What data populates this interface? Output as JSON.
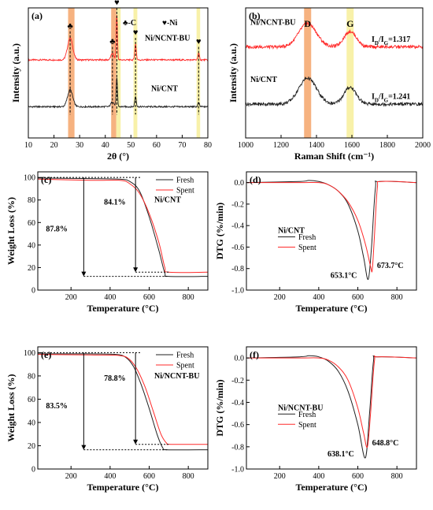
{
  "colors": {
    "fresh": "#222222",
    "spent": "#ff2a2a",
    "orange_band": "#f5a46a",
    "yellow_band": "#f7ee9a"
  },
  "chart_data": [
    {
      "id": "a",
      "panel_label": "(a)",
      "type": "line",
      "xlabel": "2θ (°)",
      "ylabel": "Intensity (a.u.)",
      "xlim": [
        10,
        80
      ],
      "xticks": [
        "10",
        "20",
        "30",
        "40",
        "50",
        "60",
        "70",
        "80"
      ],
      "legend_symbols": [
        "♣-C",
        "♥-Ni"
      ],
      "bands": [
        {
          "x0": 25.5,
          "x1": 28,
          "color": "orange"
        },
        {
          "x0": 42.3,
          "x1": 44.3,
          "color": "orange"
        },
        {
          "x0": 44.3,
          "x1": 46,
          "color": "yellow"
        },
        {
          "x0": 51,
          "x1": 52.5,
          "color": "yellow"
        },
        {
          "x0": 75.6,
          "x1": 77,
          "color": "yellow"
        }
      ],
      "markers": [
        {
          "x": 26.3,
          "symbol": "♣"
        },
        {
          "x": 42.8,
          "symbol": "♣"
        },
        {
          "x": 44.5,
          "symbol": "♥"
        },
        {
          "x": 51.8,
          "symbol": "♥"
        },
        {
          "x": 76.4,
          "symbol": "♥"
        }
      ],
      "series": [
        {
          "name": "Ni/NCNT-BU",
          "color": "spent",
          "baseline": 0.6,
          "peaks": [
            [
              26.3,
              0.17,
              1.0
            ],
            [
              42.8,
              0.05,
              0.6
            ],
            [
              44.5,
              0.35,
              0.25
            ],
            [
              51.8,
              0.12,
              0.3
            ],
            [
              76.4,
              0.05,
              0.3
            ]
          ]
        },
        {
          "name": "Ni/CNT",
          "color": "fresh",
          "baseline": 0.24,
          "peaks": [
            [
              26.3,
              0.13,
              1.0
            ],
            [
              42.8,
              0.04,
              0.6
            ],
            [
              44.5,
              0.22,
              0.25
            ],
            [
              51.8,
              0.08,
              0.3
            ],
            [
              76.4,
              0.03,
              0.3
            ]
          ]
        }
      ]
    },
    {
      "id": "b",
      "panel_label": "(b)",
      "type": "line",
      "xlabel": "Raman Shift (cm⁻¹)",
      "ylabel": "Intensity (a.u.)",
      "xlim": [
        1000,
        2000
      ],
      "xticks": [
        "1000",
        "1200",
        "1400",
        "1600",
        "1800",
        "2000"
      ],
      "bands": [
        {
          "x0": 1330,
          "x1": 1370,
          "color": "orange",
          "label": "D"
        },
        {
          "x0": 1570,
          "x1": 1610,
          "color": "yellow",
          "label": "G"
        }
      ],
      "series": [
        {
          "name": "Ni/NCNT-BU",
          "color": "spent",
          "baseline": 0.7,
          "ratio": "1.317",
          "peaks": [
            [
              1350,
              0.18,
              50
            ],
            [
              1590,
              0.12,
              35
            ]
          ]
        },
        {
          "name": "Ni/CNT",
          "color": "fresh",
          "baseline": 0.26,
          "ratio": "1.241",
          "peaks": [
            [
              1350,
              0.2,
              50
            ],
            [
              1590,
              0.13,
              35
            ]
          ]
        }
      ]
    },
    {
      "id": "c",
      "panel_label": "(c)",
      "type": "line",
      "xlabel": "Temperature (°C)",
      "ylabel": "Weight Loss (%)",
      "xlim": [
        30,
        900
      ],
      "ylim": [
        0,
        105
      ],
      "xticks": [
        200,
        400,
        600,
        800
      ],
      "yticks": [
        0,
        20,
        40,
        60,
        80,
        100
      ],
      "sample": "Ni/CNT",
      "arrows": [
        {
          "x": 265,
          "from": 100,
          "to": 12.2,
          "label": "87.8%"
        },
        {
          "x": 530,
          "from": 100,
          "to": 15.9,
          "label": "84.1%"
        }
      ],
      "series": [
        {
          "name": "Fresh",
          "color": "fresh",
          "points": [
            [
              30,
              99.5
            ],
            [
              300,
              99
            ],
            [
              450,
              98.5
            ],
            [
              500,
              96.5
            ],
            [
              550,
              88
            ],
            [
              600,
              65
            ],
            [
              650,
              35
            ],
            [
              680,
              15
            ],
            [
              700,
              12.2
            ],
            [
              900,
              12.2
            ]
          ]
        },
        {
          "name": "Spent",
          "color": "spent",
          "points": [
            [
              30,
              98.5
            ],
            [
              300,
              97.5
            ],
            [
              450,
              97.5
            ],
            [
              500,
              94.5
            ],
            [
              550,
              86
            ],
            [
              600,
              68
            ],
            [
              650,
              42
            ],
            [
              680,
              20
            ],
            [
              700,
              15.9
            ],
            [
              900,
              15.9
            ]
          ]
        }
      ]
    },
    {
      "id": "d",
      "panel_label": "(d)",
      "type": "line",
      "xlabel": "Temperature (°C)",
      "ylabel": "DTG (%/min)",
      "xlim": [
        30,
        900
      ],
      "ylim": [
        -1.0,
        0.1
      ],
      "xticks": [
        200,
        400,
        600,
        800
      ],
      "yticks": [
        0.0,
        -0.2,
        -0.4,
        -0.6,
        -0.8,
        -1.0
      ],
      "sample": "Ni/CNT",
      "peak_labels": [
        {
          "x": 653.1,
          "y": -0.9,
          "label": "653.1°C"
        },
        {
          "x": 673.7,
          "y": -0.81,
          "label": "673.7°C"
        }
      ],
      "series": [
        {
          "name": "Fresh",
          "color": "fresh",
          "points": [
            [
              30,
              0
            ],
            [
              300,
              0.01
            ],
            [
              350,
              0.02
            ],
            [
              400,
              0.01
            ],
            [
              450,
              -0.02
            ],
            [
              500,
              -0.08
            ],
            [
              550,
              -0.2
            ],
            [
              600,
              -0.45
            ],
            [
              630,
              -0.7
            ],
            [
              653,
              -0.9
            ],
            [
              670,
              -0.6
            ],
            [
              690,
              -0.05
            ],
            [
              710,
              0.01
            ],
            [
              900,
              0
            ]
          ]
        },
        {
          "name": "Spent",
          "color": "spent",
          "points": [
            [
              30,
              0
            ],
            [
              300,
              0
            ],
            [
              400,
              0
            ],
            [
              450,
              -0.02
            ],
            [
              500,
              -0.08
            ],
            [
              550,
              -0.18
            ],
            [
              600,
              -0.35
            ],
            [
              640,
              -0.58
            ],
            [
              665,
              -0.78
            ],
            [
              674,
              -0.81
            ],
            [
              685,
              -0.5
            ],
            [
              700,
              -0.05
            ],
            [
              720,
              0.01
            ],
            [
              900,
              0
            ]
          ]
        }
      ]
    },
    {
      "id": "e",
      "panel_label": "(e)",
      "type": "line",
      "xlabel": "Temperature (°C)",
      "ylabel": "Weight Loss (%)",
      "xlim": [
        30,
        900
      ],
      "ylim": [
        0,
        105
      ],
      "xticks": [
        200,
        400,
        600,
        800
      ],
      "yticks": [
        0,
        20,
        40,
        60,
        80,
        100
      ],
      "sample": "Ni/NCNT-BU",
      "arrows": [
        {
          "x": 265,
          "from": 100,
          "to": 16.5,
          "label": "83.5%"
        },
        {
          "x": 530,
          "from": 100,
          "to": 21.2,
          "label": "78.8%"
        }
      ],
      "series": [
        {
          "name": "Fresh",
          "color": "fresh",
          "points": [
            [
              30,
              99
            ],
            [
              300,
              99
            ],
            [
              430,
              98.5
            ],
            [
              480,
              96
            ],
            [
              520,
              88
            ],
            [
              560,
              72
            ],
            [
              600,
              52
            ],
            [
              640,
              30
            ],
            [
              670,
              18
            ],
            [
              690,
              16.5
            ],
            [
              900,
              16.5
            ]
          ]
        },
        {
          "name": "Spent",
          "color": "spent",
          "points": [
            [
              30,
              98.5
            ],
            [
              300,
              98
            ],
            [
              450,
              97.5
            ],
            [
              500,
              94
            ],
            [
              540,
              85
            ],
            [
              580,
              70
            ],
            [
              620,
              50
            ],
            [
              660,
              30
            ],
            [
              690,
              22
            ],
            [
              710,
              21.2
            ],
            [
              900,
              21.2
            ]
          ]
        }
      ]
    },
    {
      "id": "f",
      "panel_label": "(f)",
      "type": "line",
      "xlabel": "Temperature (°C)",
      "ylabel": "DTG (%/min)",
      "xlim": [
        30,
        900
      ],
      "ylim": [
        -1.0,
        0.1
      ],
      "xticks": [
        200,
        400,
        600,
        800
      ],
      "yticks": [
        0.0,
        -0.2,
        -0.4,
        -0.6,
        -0.8,
        -1.0
      ],
      "sample": "Ni/NCNT-BU",
      "peak_labels": [
        {
          "x": 638.1,
          "y": -0.9,
          "label": "638.1°C"
        },
        {
          "x": 648.8,
          "y": -0.8,
          "label": "648.8°C"
        }
      ],
      "series": [
        {
          "name": "Fresh",
          "color": "fresh",
          "points": [
            [
              30,
              0
            ],
            [
              300,
              0.01
            ],
            [
              350,
              0.02
            ],
            [
              400,
              0.01
            ],
            [
              450,
              -0.03
            ],
            [
              500,
              -0.12
            ],
            [
              550,
              -0.3
            ],
            [
              600,
              -0.6
            ],
            [
              638,
              -0.9
            ],
            [
              660,
              -0.5
            ],
            [
              680,
              -0.03
            ],
            [
              700,
              0.01
            ],
            [
              900,
              0
            ]
          ]
        },
        {
          "name": "Spent",
          "color": "spent",
          "points": [
            [
              30,
              0
            ],
            [
              300,
              0
            ],
            [
              400,
              0
            ],
            [
              450,
              -0.02
            ],
            [
              500,
              -0.08
            ],
            [
              550,
              -0.2
            ],
            [
              600,
              -0.45
            ],
            [
              630,
              -0.68
            ],
            [
              649,
              -0.8
            ],
            [
              665,
              -0.5
            ],
            [
              685,
              -0.03
            ],
            [
              705,
              0.01
            ],
            [
              900,
              0
            ]
          ]
        }
      ]
    }
  ]
}
